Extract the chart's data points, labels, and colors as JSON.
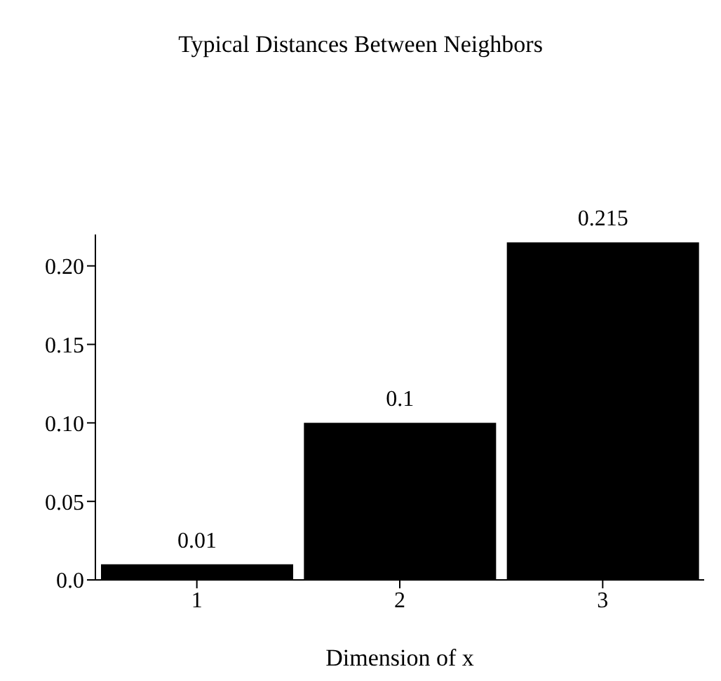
{
  "chart_data": {
    "type": "bar",
    "title": "Typical Distances Between Neighbors",
    "xlabel": "Dimension of x",
    "categories": [
      "1",
      "2",
      "3"
    ],
    "values": [
      0.01,
      0.1,
      0.215
    ],
    "color": "#000000",
    "ylim": [
      0,
      0.22
    ],
    "yticks": [
      {
        "value": 0,
        "label": "0.0"
      },
      0.05,
      {
        "value": 0.1,
        "label": "0.10"
      },
      0.15,
      {
        "value": 0.2,
        "label": "0.20"
      }
    ],
    "data_labels": true,
    "grid": false,
    "legend": false
  }
}
